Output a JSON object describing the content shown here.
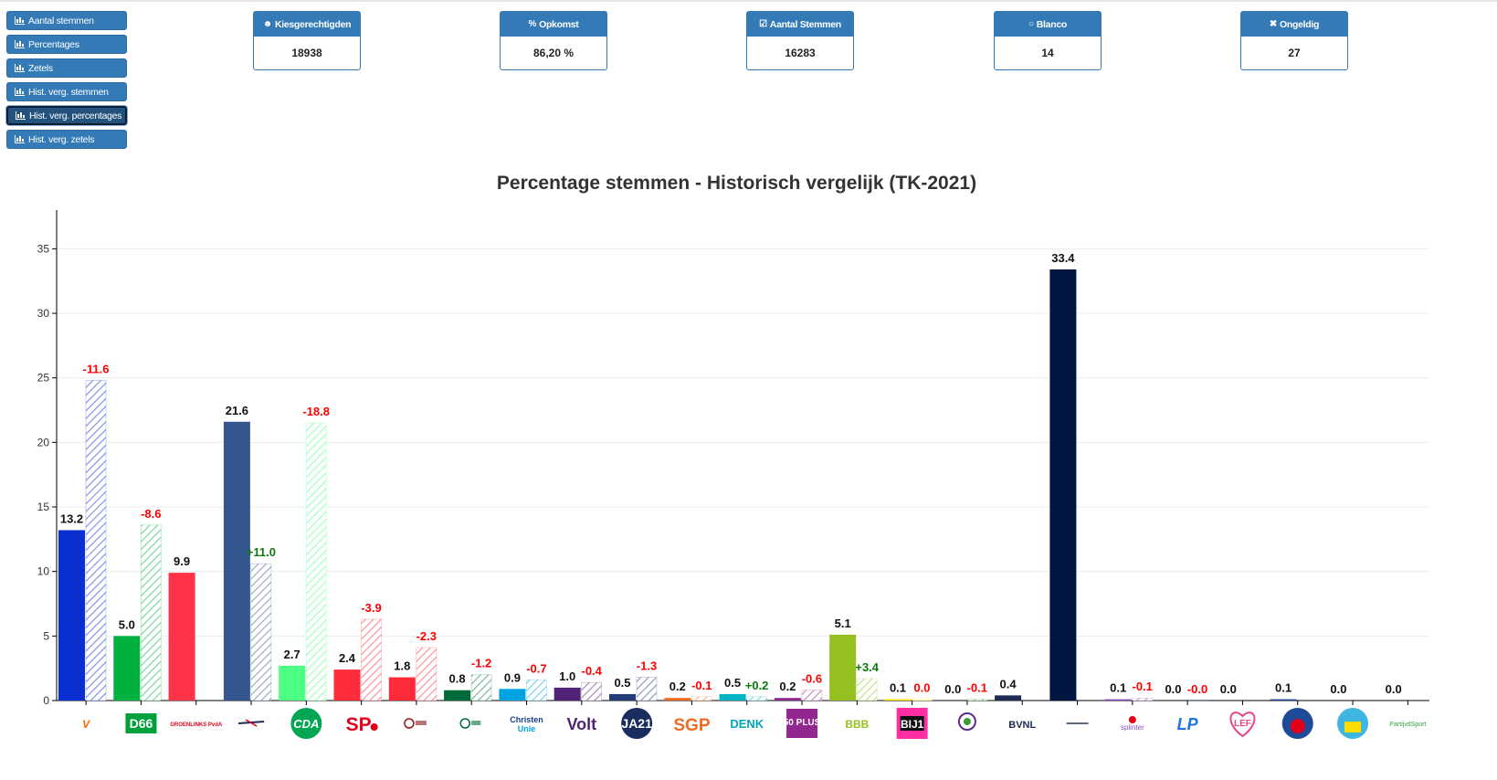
{
  "sidebar": {
    "buttons": [
      {
        "label": "Aantal stemmen",
        "icon": "bar-chart-icon",
        "active": false
      },
      {
        "label": "Percentages",
        "icon": "bar-chart-icon",
        "active": false
      },
      {
        "label": "Zetels",
        "icon": "bar-chart-icon",
        "active": false
      },
      {
        "label": "Hist. verg. stemmen",
        "icon": "bar-chart-icon",
        "active": false
      },
      {
        "label": "Hist. verg. percentages",
        "icon": "bar-chart-icon",
        "active": true
      },
      {
        "label": "Hist. verg. zetels",
        "icon": "bar-chart-icon",
        "active": false
      }
    ]
  },
  "stats": [
    {
      "label": "Kiesgerechtigden",
      "value": "18938",
      "icon": "users-icon"
    },
    {
      "label": "Opkomst",
      "value": "86,20 %",
      "icon": "percent-icon"
    },
    {
      "label": "Aantal Stemmen",
      "value": "16283",
      "icon": "check-square-icon"
    },
    {
      "label": "Blanco",
      "value": "14",
      "icon": "circle-icon"
    },
    {
      "label": "Ongeldig",
      "value": "27",
      "icon": "times-icon"
    }
  ],
  "chart_data": {
    "type": "bar",
    "title": "Percentage stemmen - Historisch vergelijk (TK-2021)",
    "ylim": [
      0,
      38
    ],
    "yticks": [
      0,
      5,
      10,
      15,
      20,
      25,
      30,
      35
    ],
    "grid": true,
    "parties": [
      {
        "logo": "VVD",
        "color": "#0a2ecf",
        "current": 13.2,
        "previous": 24.8,
        "diff": "-11.6"
      },
      {
        "logo": "D66",
        "color": "#00b140",
        "current": 5.0,
        "previous": 13.6,
        "diff": "-8.6"
      },
      {
        "logo": "GROENLINKS PvdA",
        "color": "#ff3348",
        "current": 9.9,
        "previous": null,
        "diff": null
      },
      {
        "logo": "NSC",
        "color": "#34578f",
        "current": 21.6,
        "previous": 10.6,
        "diff": "+11.0"
      },
      {
        "logo": "CDA",
        "color": "#4dff82",
        "current": 2.7,
        "previous": 21.5,
        "diff": "-18.8"
      },
      {
        "logo": "SP",
        "color": "#ff2d3c",
        "current": 2.4,
        "previous": 6.3,
        "diff": "-3.9"
      },
      {
        "logo": "Forum voor Democratie",
        "color": "#ff2a3a",
        "current": 1.8,
        "previous": 4.1,
        "diff": "-2.3"
      },
      {
        "logo": "Partij voor de Dieren",
        "color": "#006b3a",
        "current": 0.8,
        "previous": 2.0,
        "diff": "-1.2"
      },
      {
        "logo": "ChristenUnie",
        "color": "#00a3e0",
        "current": 0.9,
        "previous": 1.6,
        "diff": "-0.7"
      },
      {
        "logo": "Volt",
        "color": "#502379",
        "current": 1.0,
        "previous": 1.4,
        "diff": "-0.4"
      },
      {
        "logo": "JA21",
        "color": "#243b7a",
        "current": 0.5,
        "previous": 1.8,
        "diff": "-1.3"
      },
      {
        "logo": "SGP",
        "color": "#f26a22",
        "current": 0.2,
        "previous": 0.3,
        "diff": "-0.1"
      },
      {
        "logo": "DENK",
        "color": "#00b5c4",
        "current": 0.5,
        "previous": 0.3,
        "diff": "+0.2"
      },
      {
        "logo": "50 PLUS",
        "color": "#92278f",
        "current": 0.2,
        "previous": 0.8,
        "diff": "-0.6"
      },
      {
        "logo": "BBB",
        "color": "#94c11f",
        "current": 5.1,
        "previous": 1.7,
        "diff": "+3.4"
      },
      {
        "logo": "BIJ1",
        "color": "#ffe000",
        "current": 0.1,
        "previous": 0.1,
        "diff": "0.0"
      },
      {
        "logo": "Piratenpartij De Groenen",
        "color": "#3f9b35",
        "current": 0.0,
        "previous": 0.1,
        "diff": "-0.1"
      },
      {
        "logo": "BVNL",
        "color": "#1c2a55",
        "current": 0.4,
        "previous": null,
        "diff": null
      },
      {
        "logo": "Nieuw Sociaal Contract",
        "color": "#001640",
        "current": 33.4,
        "previous": null,
        "diff": null
      },
      {
        "logo": "splinter",
        "color": "#8a4fbf",
        "current": 0.1,
        "previous": 0.2,
        "diff": "-0.1"
      },
      {
        "logo": "LP",
        "color": "#1a73e8",
        "current": 0.0,
        "previous": 0.0,
        "diff": "-0.0"
      },
      {
        "logo": "LEF",
        "color": "#e8458b",
        "current": 0.0,
        "previous": null,
        "diff": null
      },
      {
        "logo": "Samen voor Nederland",
        "color": "#1f4a9a",
        "current": 0.1,
        "previous": null,
        "diff": null
      },
      {
        "logo": "NL PLAN SVP",
        "color": "#00a0c6",
        "current": 0.0,
        "previous": null,
        "diff": null
      },
      {
        "logo": "PartijvdSport",
        "color": "#2ea043",
        "current": 0.0,
        "previous": null,
        "diff": null
      }
    ]
  }
}
